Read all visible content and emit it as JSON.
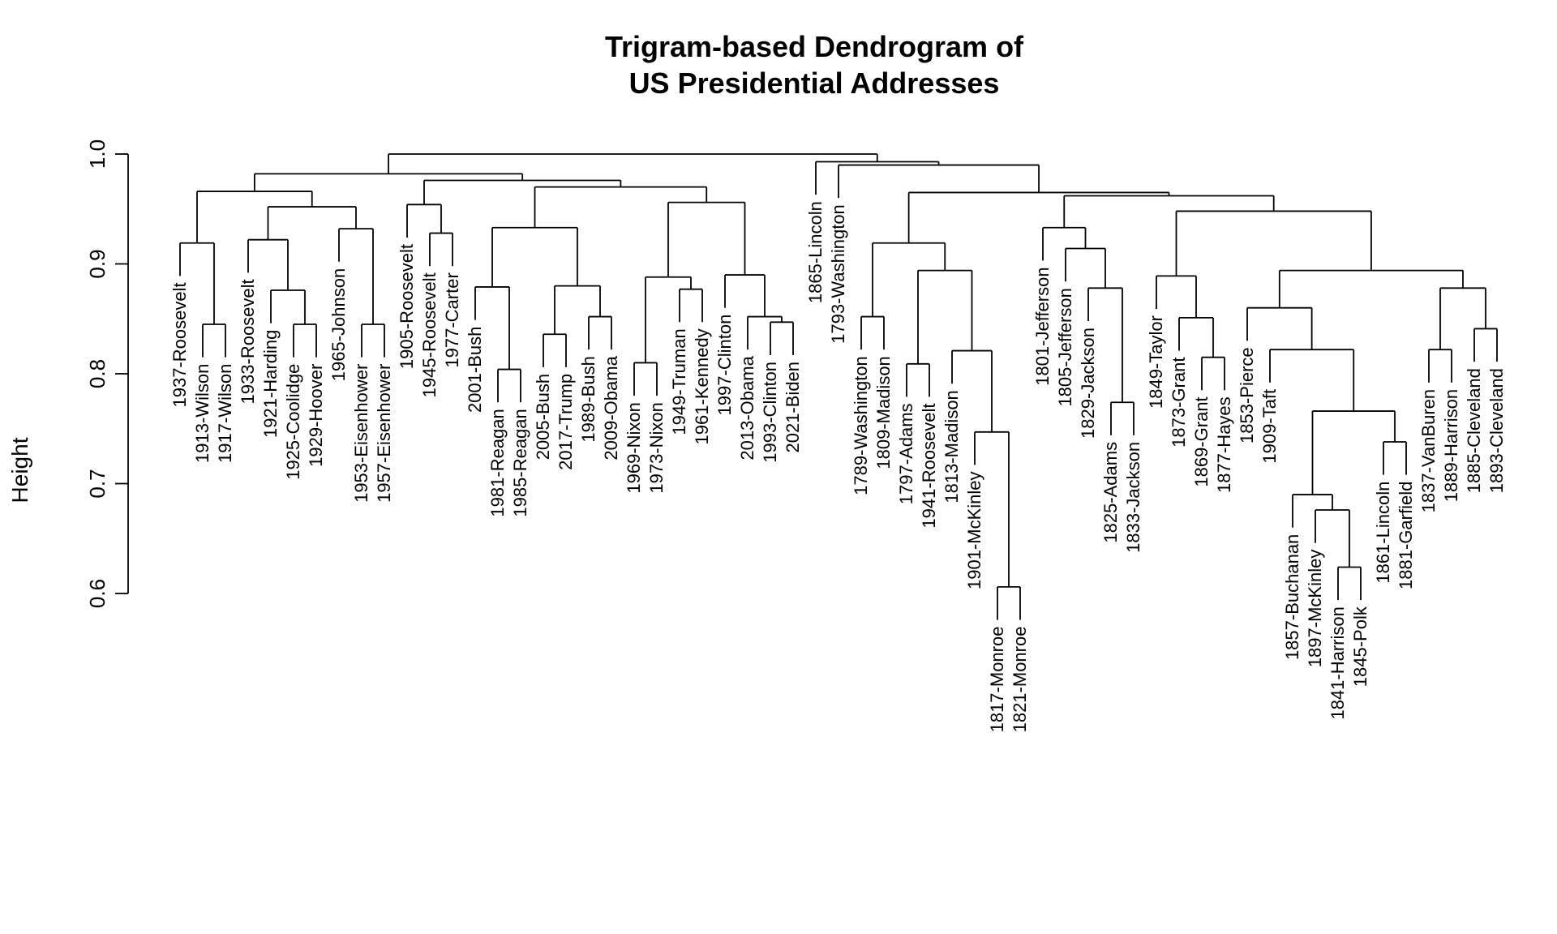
{
  "chart_data": {
    "type": "dendrogram",
    "title_line1": "Trigram-based Dendrogram of",
    "title_line2": "US Presidential Addresses",
    "ylabel": "Height",
    "ylim": [
      0.6,
      1.0
    ],
    "y_ticks": [
      "0.6",
      "0.7",
      "0.8",
      "0.9",
      "1.0"
    ],
    "y_tick_values": [
      0.6,
      0.7,
      0.8,
      0.9,
      1.0
    ],
    "leaves": [
      "1937-Roosevelt",
      "1913-Wilson",
      "1917-Wilson",
      "1933-Roosevelt",
      "1921-Harding",
      "1925-Coolidge",
      "1929-Hoover",
      "1965-Johnson",
      "1953-Eisenhower",
      "1957-Eisenhower",
      "1905-Roosevelt",
      "1945-Roosevelt",
      "1977-Carter",
      "2001-Bush",
      "1981-Reagan",
      "1985-Reagan",
      "2005-Bush",
      "2017-Trump",
      "1989-Bush",
      "2009-Obama",
      "1969-Nixon",
      "1973-Nixon",
      "1949-Truman",
      "1961-Kennedy",
      "1997-Clinton",
      "2013-Obama",
      "1993-Clinton",
      "2021-Biden",
      "1865-Lincoln",
      "1793-Washington",
      "1789-Washington",
      "1809-Madison",
      "1797-Adams",
      "1941-Roosevelt",
      "1813-Madison",
      "1901-McKinley",
      "1817-Monroe",
      "1821-Monroe",
      "1801-Jefferson",
      "1805-Jefferson",
      "1829-Jackson",
      "1825-Adams",
      "1833-Jackson",
      "1849-Taylor",
      "1873-Grant",
      "1869-Grant",
      "1877-Hayes",
      "1853-Pierce",
      "1909-Taft",
      "1857-Buchanan",
      "1897-McKinley",
      "1841-Harrison",
      "1845-Polk",
      "1861-Lincoln",
      "1881-Garfield",
      "1837-VanBuren",
      "1889-Harrison",
      "1885-Cleveland",
      "1893-Cleveland"
    ],
    "merges": [
      [
        0,
        1,
        0.845
      ],
      [
        2,
        5,
        6,
        0.845
      ],
      [
        3,
        4,
        0.876
      ],
      [
        5,
        8,
        9,
        0.845
      ],
      [
        6,
        7,
        0.922
      ],
      [
        7,
        14,
        15,
        0.804
      ],
      [
        8,
        18,
        19,
        0.852
      ],
      [
        9,
        16,
        17,
        0.836
      ],
      [
        10,
        10,
        0.934
      ],
      [
        11,
        11,
        12,
        0.928
      ],
      [
        12,
        13,
        0.88
      ],
      [
        13,
        20,
        21,
        0.81
      ],
      [
        14,
        22,
        23,
        0.877
      ],
      [
        15,
        26,
        27,
        0.847
      ],
      [
        16,
        25,
        0.852
      ],
      [
        17,
        36,
        37,
        0.606
      ],
      [
        18,
        35,
        0.747
      ],
      [
        19,
        34,
        0.821
      ],
      [
        20,
        32,
        33,
        0.809
      ],
      [
        21,
        30,
        31,
        0.852
      ],
      [
        22,
        41,
        42,
        0.774
      ],
      [
        23,
        40,
        0.878
      ],
      [
        24,
        39,
        0.914
      ],
      [
        25,
        38,
        0.933
      ],
      [
        26,
        45,
        46,
        0.815
      ],
      [
        27,
        44,
        0.851
      ],
      [
        28,
        43,
        0.889
      ],
      [
        29,
        51,
        52,
        0.624
      ],
      [
        30,
        50,
        0.676
      ],
      [
        31,
        49,
        0.69
      ],
      [
        32,
        53,
        54,
        0.738
      ],
      [
        33,
        0.766
      ],
      [
        34,
        48,
        0.822
      ],
      [
        35,
        47,
        0.86
      ],
      [
        36,
        57,
        58,
        0.841
      ],
      [
        37,
        55,
        56,
        0.822
      ],
      [
        38,
        0.878
      ],
      [
        39,
        0.894
      ],
      [
        40,
        0.947
      ],
      [
        41,
        0.962
      ],
      [
        42,
        0.964
      ],
      [
        43,
        0.953
      ],
      [
        44,
        0.965
      ],
      [
        45,
        0.957
      ],
      [
        46,
        0.967
      ],
      [
        47,
        0.977
      ],
      [
        48,
        0.983
      ],
      [
        49,
        0.974
      ],
      [
        50,
        0.968
      ],
      [
        51,
        0.971
      ],
      [
        52,
        0.919
      ],
      [
        53,
        0.895
      ],
      [
        54,
        0.955
      ],
      [
        55,
        0.888
      ],
      [
        56,
        0.89
      ],
      [
        57,
        0.934
      ],
      [
        58,
        0.933
      ],
      [
        59,
        0.963
      ],
      [
        60,
        0.982
      ],
      [
        61,
        1.0
      ],
      [
        62,
        0.993
      ]
    ]
  }
}
